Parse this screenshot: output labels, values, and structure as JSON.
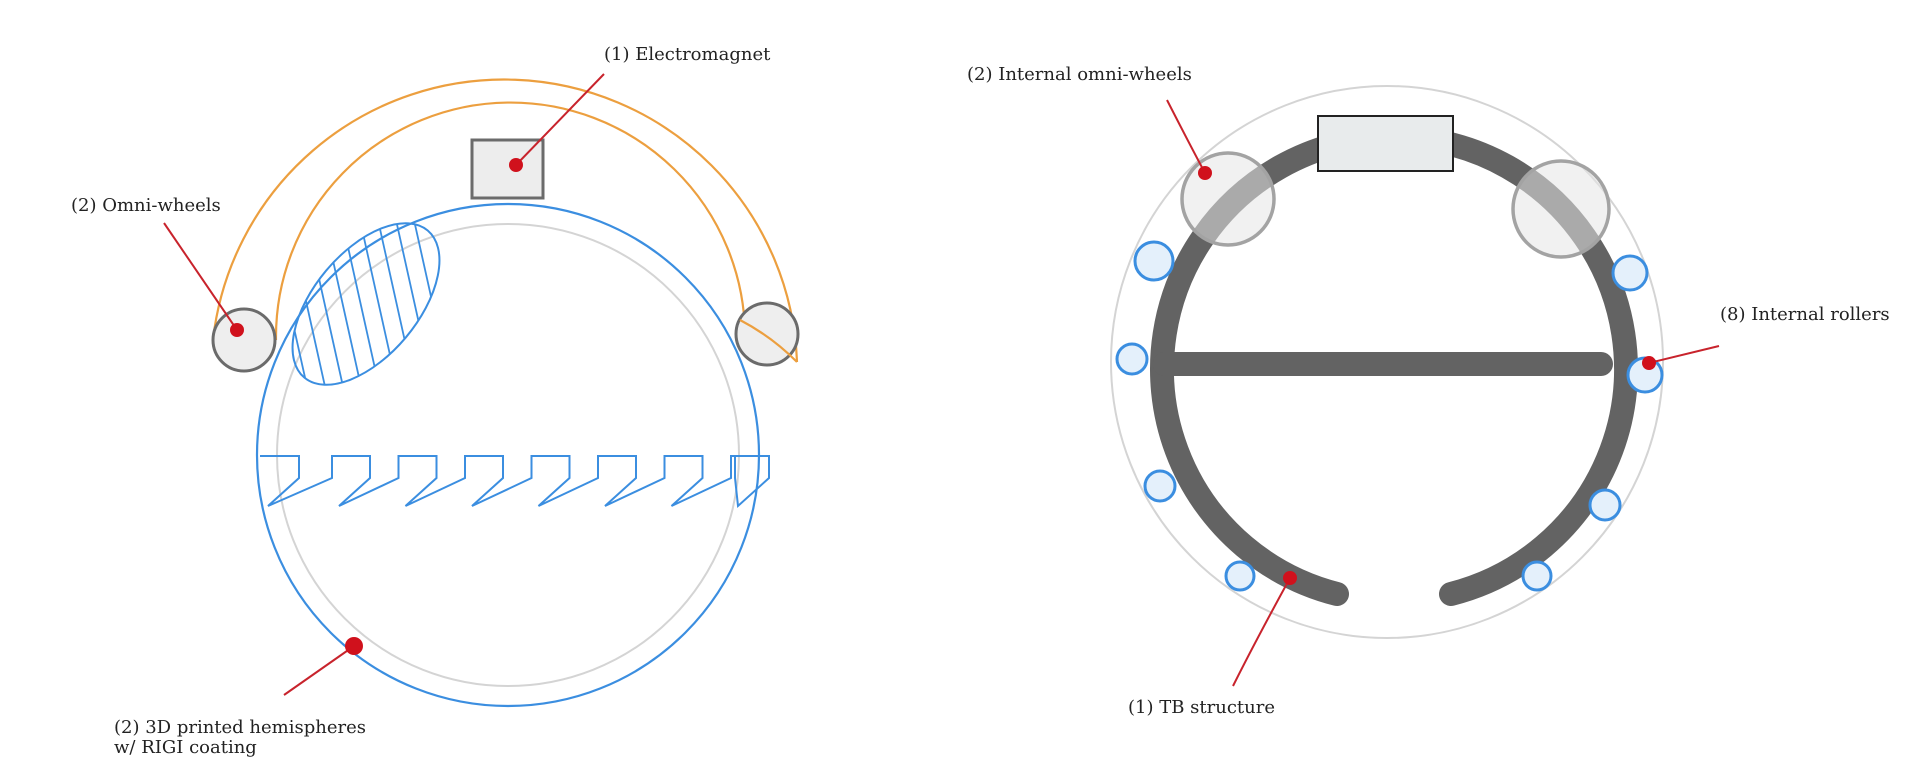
{
  "colors": {
    "callout": "#d0111c",
    "leader": "#c8232c",
    "sphere": "#3b8ee0",
    "orange_arc": "#ec9f3f",
    "structure": "#636363",
    "light_circle": "#d4d4d4",
    "roller_fill": "#e4f0fb"
  },
  "left_diagram": {
    "labels": {
      "electromagnet": "(1) Electromagnet",
      "omni_wheels": "(2) Omni-wheels",
      "hemispheres_line1": "(2) 3D printed hemispheres",
      "hemispheres_line2": "w/ RIGI coating"
    }
  },
  "right_diagram": {
    "labels": {
      "internal_omni_wheels": "(2) Internal omni-wheels",
      "internal_rollers": "(8) Internal rollers",
      "tb_structure": "(1) TB structure"
    },
    "roller_count": 8
  }
}
